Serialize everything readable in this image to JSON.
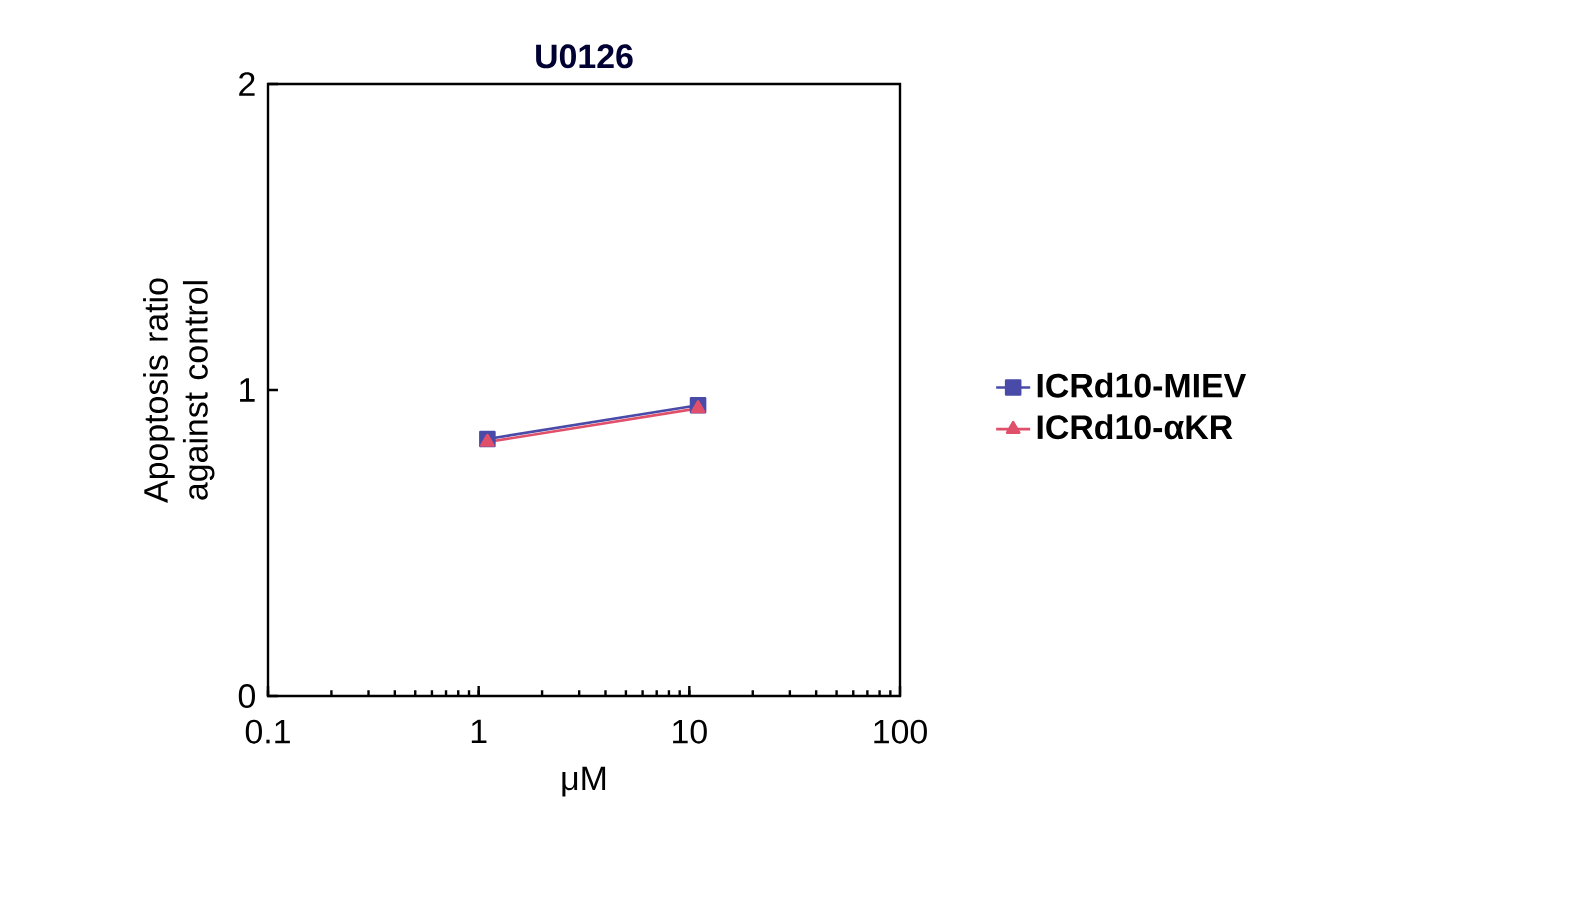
{
  "chart_data": {
    "type": "line",
    "title": "U0126",
    "xlabel": "μM",
    "ylabel": "Apoptosis ratio against control",
    "x": [
      1.1,
      11
    ],
    "log": "x",
    "series": [
      {
        "name": "ICRd10-MIEV",
        "color": "#4a4aa8",
        "marker": "square",
        "values": [
          0.84,
          0.95
        ]
      },
      {
        "name": "ICRd10-αKR",
        "color": "#e0506a",
        "marker": "triangle",
        "values": [
          0.83,
          0.94
        ]
      }
    ],
    "xlim": [
      0.1,
      100
    ],
    "xticks": [
      0.1,
      1,
      10,
      100
    ],
    "ylim": [
      0,
      2
    ],
    "yticks": [
      0,
      1,
      2
    ],
    "legend": "right",
    "grid": false
  }
}
